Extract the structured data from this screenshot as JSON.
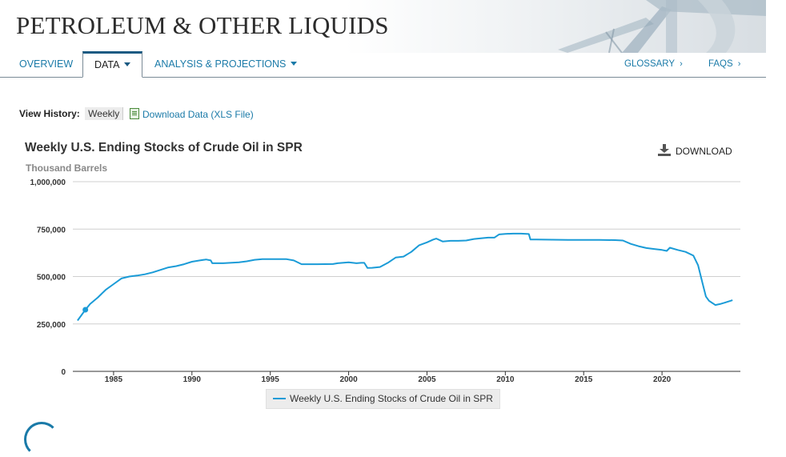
{
  "banner": {
    "title": "PETROLEUM & OTHER LIQUIDS"
  },
  "nav": {
    "overview": "OVERVIEW",
    "data": "DATA",
    "analysis": "ANALYSIS & PROJECTIONS",
    "glossary": "GLOSSARY",
    "faqs": "FAQS"
  },
  "toolbar": {
    "history_label": "View History:",
    "history_value": "Weekly",
    "download_xls": "Download Data (XLS File)",
    "download": "DOWNLOAD"
  },
  "colors": {
    "series": "#1a9bd7",
    "brand": "#1a7aa8"
  },
  "chart_data": {
    "type": "line",
    "title": "Weekly U.S. Ending Stocks of Crude Oil in SPR",
    "ylabel": "Thousand Barrels",
    "xlabel": "",
    "ylim": [
      0,
      1000000
    ],
    "xlim": [
      1982.4,
      2025.0
    ],
    "yticks": [
      0,
      250000,
      500000,
      750000,
      1000000
    ],
    "ytick_labels": [
      "0",
      "250,000",
      "500,000",
      "750,000",
      "1,000,000"
    ],
    "xticks": [
      1985,
      1990,
      1995,
      2000,
      2005,
      2010,
      2015,
      2020
    ],
    "xtick_labels": [
      "1985",
      "1990",
      "1995",
      "2000",
      "2005",
      "2010",
      "2015",
      "2020"
    ],
    "grid": true,
    "legend_position": "bottom-center",
    "series": [
      {
        "name": "Weekly U.S. Ending Stocks of Crude Oil in SPR",
        "color": "#1a9bd7",
        "marker_at": [
          1983.2,
          325000
        ],
        "x": [
          1982.7,
          1983.2,
          1983.5,
          1984.0,
          1984.5,
          1985.0,
          1985.5,
          1986.0,
          1986.5,
          1987.0,
          1987.5,
          1988.0,
          1988.5,
          1989.0,
          1989.5,
          1990.0,
          1990.5,
          1990.9,
          1991.2,
          1991.3,
          1992.0,
          1993.0,
          1993.5,
          1994.0,
          1994.5,
          1995.0,
          1996.0,
          1996.5,
          1997.0,
          1998.0,
          1999.0,
          1999.3,
          2000.0,
          2000.5,
          2000.8,
          2001.0,
          2001.2,
          2001.5,
          2002.0,
          2002.5,
          2003.0,
          2003.5,
          2004.0,
          2004.5,
          2005.0,
          2005.4,
          2005.6,
          2006.0,
          2006.5,
          2007.0,
          2007.5,
          2008.0,
          2008.5,
          2008.9,
          2009.3,
          2009.6,
          2010.0,
          2010.5,
          2011.0,
          2011.5,
          2011.6,
          2012.0,
          2013.0,
          2014.0,
          2015.0,
          2016.0,
          2017.0,
          2017.5,
          2018.0,
          2018.5,
          2019.0,
          2019.5,
          2020.0,
          2020.3,
          2020.5,
          2021.0,
          2021.5,
          2022.0,
          2022.3,
          2022.6,
          2022.8,
          2023.0,
          2023.4,
          2023.7,
          2024.0,
          2024.5
        ],
        "y": [
          268000,
          325000,
          355000,
          390000,
          430000,
          460000,
          490000,
          500000,
          505000,
          512000,
          522000,
          535000,
          548000,
          555000,
          565000,
          578000,
          585000,
          590000,
          585000,
          570000,
          570000,
          575000,
          580000,
          588000,
          592000,
          592000,
          592000,
          585000,
          565000,
          565000,
          566000,
          570000,
          575000,
          570000,
          572000,
          572000,
          545000,
          546000,
          550000,
          572000,
          600000,
          605000,
          630000,
          665000,
          680000,
          695000,
          700000,
          685000,
          688000,
          688000,
          690000,
          698000,
          702000,
          705000,
          705000,
          722000,
          725000,
          726000,
          726000,
          724000,
          695000,
          695000,
          694000,
          693000,
          693000,
          693000,
          692000,
          690000,
          672000,
          660000,
          650000,
          645000,
          640000,
          635000,
          652000,
          640000,
          630000,
          610000,
          560000,
          460000,
          395000,
          372000,
          350000,
          355000,
          362000,
          375000
        ]
      }
    ]
  }
}
